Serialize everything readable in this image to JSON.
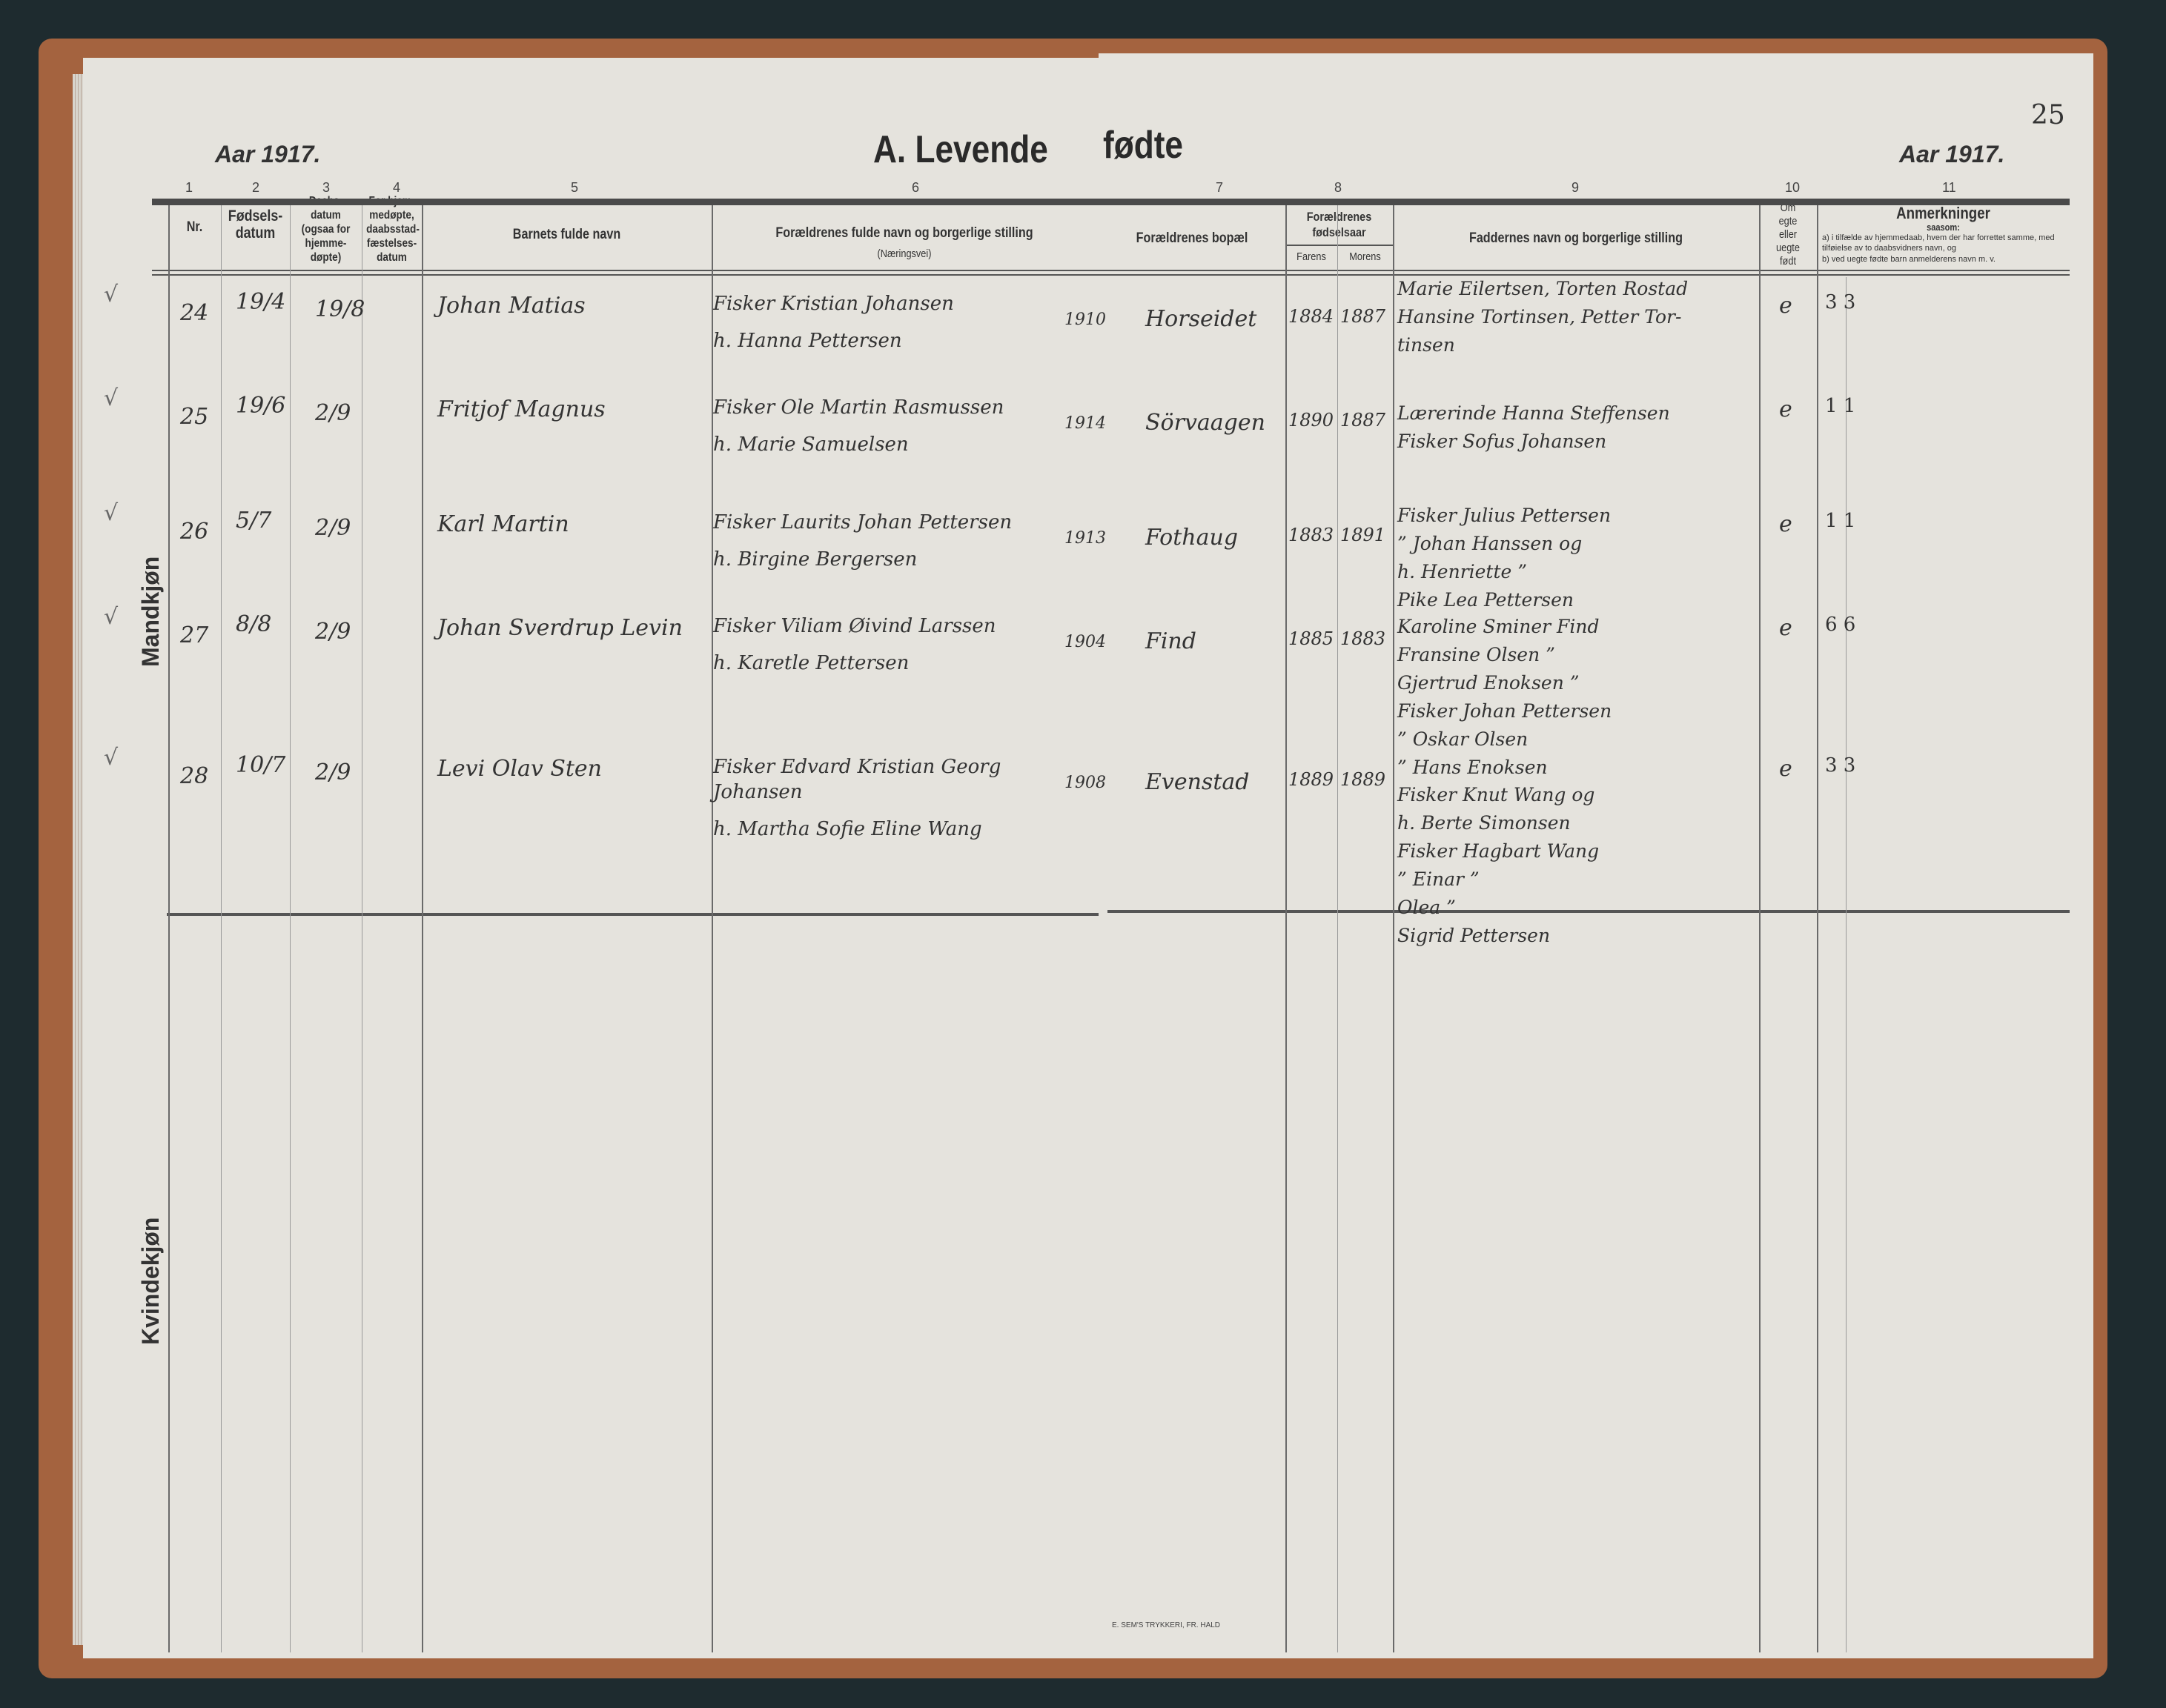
{
  "register": {
    "section_title_left": "A.  Levende",
    "section_title_right": "fødte",
    "year_left": "Aar 1917.",
    "year_right": "Aar 1917.",
    "page_number": "25",
    "printer": "E. SEM'S TRYKKERI, FR. HALD",
    "group_male": "Mandkjøn",
    "group_female": "Kvindekjøn"
  },
  "columns": {
    "numbers": [
      "1",
      "2",
      "3",
      "4",
      "5",
      "6",
      "7",
      "8",
      "9",
      "10",
      "11"
    ],
    "nr": "Nr.",
    "birth": "Fødsels-\ndatum",
    "baptism": "Daabs-\ndatum\n(ogsaa for\nhjemme-\ndøpte)",
    "home_baptism": "For hjem-\nmedøpte,\ndaabsstad-\nfæstelses-\ndatum",
    "child_name": "Barnets fulde navn",
    "parents": "Forældrenes fulde navn og borgerlige stilling",
    "parents_sub": "(Næringsvei)",
    "residence": "Forældrenes bopæl",
    "birth_years": "Forældrenes\nfødselsaar",
    "father": "Farens",
    "mother": "Morens",
    "sponsors": "Faddernes navn og borgerlige stilling",
    "legit": "Om\negte\neller\nuegte\nfødt",
    "remarks": "Anmerkninger",
    "remarks_sub": "saasom:",
    "remarks_a": "a) i tilfælde av hjemmedaab, hvem der har forrettet samme, med tilføielse av to daabsvidners navn, og",
    "remarks_b": "b) ved uegte fødte barn anmelderens navn m. v."
  },
  "entries": [
    {
      "nr": "24",
      "birth": "19/4",
      "baptism": "19/8",
      "name": "Johan Matias",
      "parents": [
        "Fisker Kristian Johansen",
        "h. Hanna Pettersen"
      ],
      "marriage_year": "1910",
      "residence": "Horseidet",
      "father_year": "1884",
      "mother_year": "1887",
      "sponsors": [
        "Marie Eilertsen, Torten Rostad",
        "Hansine Tortinsen,  Petter Tor-",
        "tinsen"
      ],
      "legit": "e",
      "remarks": "3 3"
    },
    {
      "nr": "25",
      "birth": "19/6",
      "baptism": "2/9",
      "name": "Fritjof Magnus",
      "parents": [
        "Fisker Ole Martin Rasmussen",
        "h. Marie Samuelsen"
      ],
      "marriage_year": "1914",
      "residence": "Sörvaagen",
      "father_year": "1890",
      "mother_year": "1887",
      "sponsors": [
        "Lærerinde Hanna Steffensen",
        "Fisker Sofus Johansen"
      ],
      "legit": "e",
      "remarks": "1 1"
    },
    {
      "nr": "26",
      "birth": "5/7",
      "baptism": "2/9",
      "name": "Karl Martin",
      "parents": [
        "Fisker Laurits Johan Pettersen",
        "h. Birgine Bergersen"
      ],
      "marriage_year": "1913",
      "residence": "Fothaug",
      "father_year": "1883",
      "mother_year": "1891",
      "sponsors": [
        "Fisker Julius Pettersen",
        "   ”   Johan Hanssen og",
        "h.   Henriette ”",
        "Pike  Lea Pettersen"
      ],
      "legit": "e",
      "remarks": "1 1"
    },
    {
      "nr": "27",
      "birth": "8/8",
      "baptism": "2/9",
      "name": "Johan Sverdrup Levin",
      "parents": [
        "Fisker Viliam Øivind Larssen",
        "h. Karetle Pettersen"
      ],
      "marriage_year": "1904",
      "residence": "Find",
      "father_year": "1885",
      "mother_year": "1883",
      "sponsors": [
        "Karoline Sminer Find",
        "Fransine Olsen  ”",
        "Gjertrud Enoksen ”",
        "Fisker Johan Pettersen",
        "  ”   Oskar Olsen",
        "  ”   Hans Enoksen"
      ],
      "legit": "e",
      "remarks": "6 6"
    },
    {
      "nr": "28",
      "birth": "10/7",
      "baptism": "2/9",
      "name": "Levi Olav Sten",
      "parents": [
        "Fisker Edvard Kristian Georg Johansen",
        "h. Martha Sofie Eline Wang"
      ],
      "marriage_year": "1908",
      "residence": "Evenstad",
      "father_year": "1889",
      "mother_year": "1889",
      "sponsors": [
        "Fisker Knut Wang og",
        "h.    Berte Simonsen",
        "Fisker Hagbart Wang",
        "  ”   Einar   ”",
        "        Olea   ”",
        "     Sigrid Pettersen"
      ],
      "legit": "e",
      "remarks": "3 3"
    }
  ],
  "colors": {
    "page": "#e5e3dd",
    "cover": "#a4633f",
    "background": "#1e2b2f",
    "ink": "#333333"
  }
}
